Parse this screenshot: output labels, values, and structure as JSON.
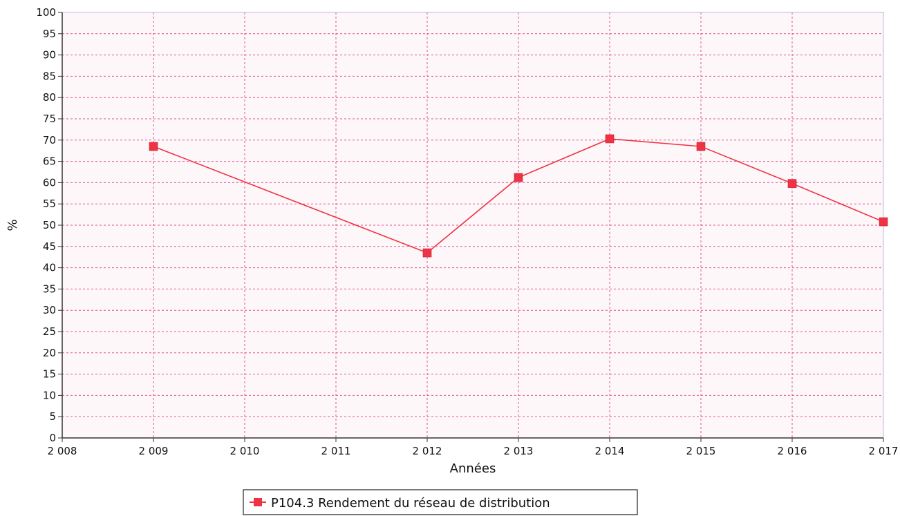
{
  "chart_data": {
    "type": "line",
    "title": "",
    "xlabel": "Années",
    "ylabel": "%",
    "x_ticks": [
      "2 008",
      "2 009",
      "2 010",
      "2 011",
      "2 012",
      "2 013",
      "2 014",
      "2 015",
      "2 016",
      "2 017"
    ],
    "xlim": [
      2008,
      2017
    ],
    "ylim": [
      0,
      100
    ],
    "y_ticks": [
      "0",
      "5",
      "10",
      "15",
      "20",
      "25",
      "30",
      "35",
      "40",
      "45",
      "50",
      "55",
      "60",
      "65",
      "70",
      "75",
      "80",
      "85",
      "90",
      "95",
      "100"
    ],
    "grid": true,
    "legend_position": "bottom-center",
    "series": [
      {
        "name": "P104.3 Rendement du réseau de distribution",
        "color": "#ee3344",
        "marker": "square",
        "x": [
          2009,
          2012,
          2013,
          2014,
          2015,
          2016,
          2017
        ],
        "values": [
          68.5,
          43.5,
          61.2,
          70.3,
          68.5,
          59.8,
          50.8
        ]
      }
    ]
  }
}
